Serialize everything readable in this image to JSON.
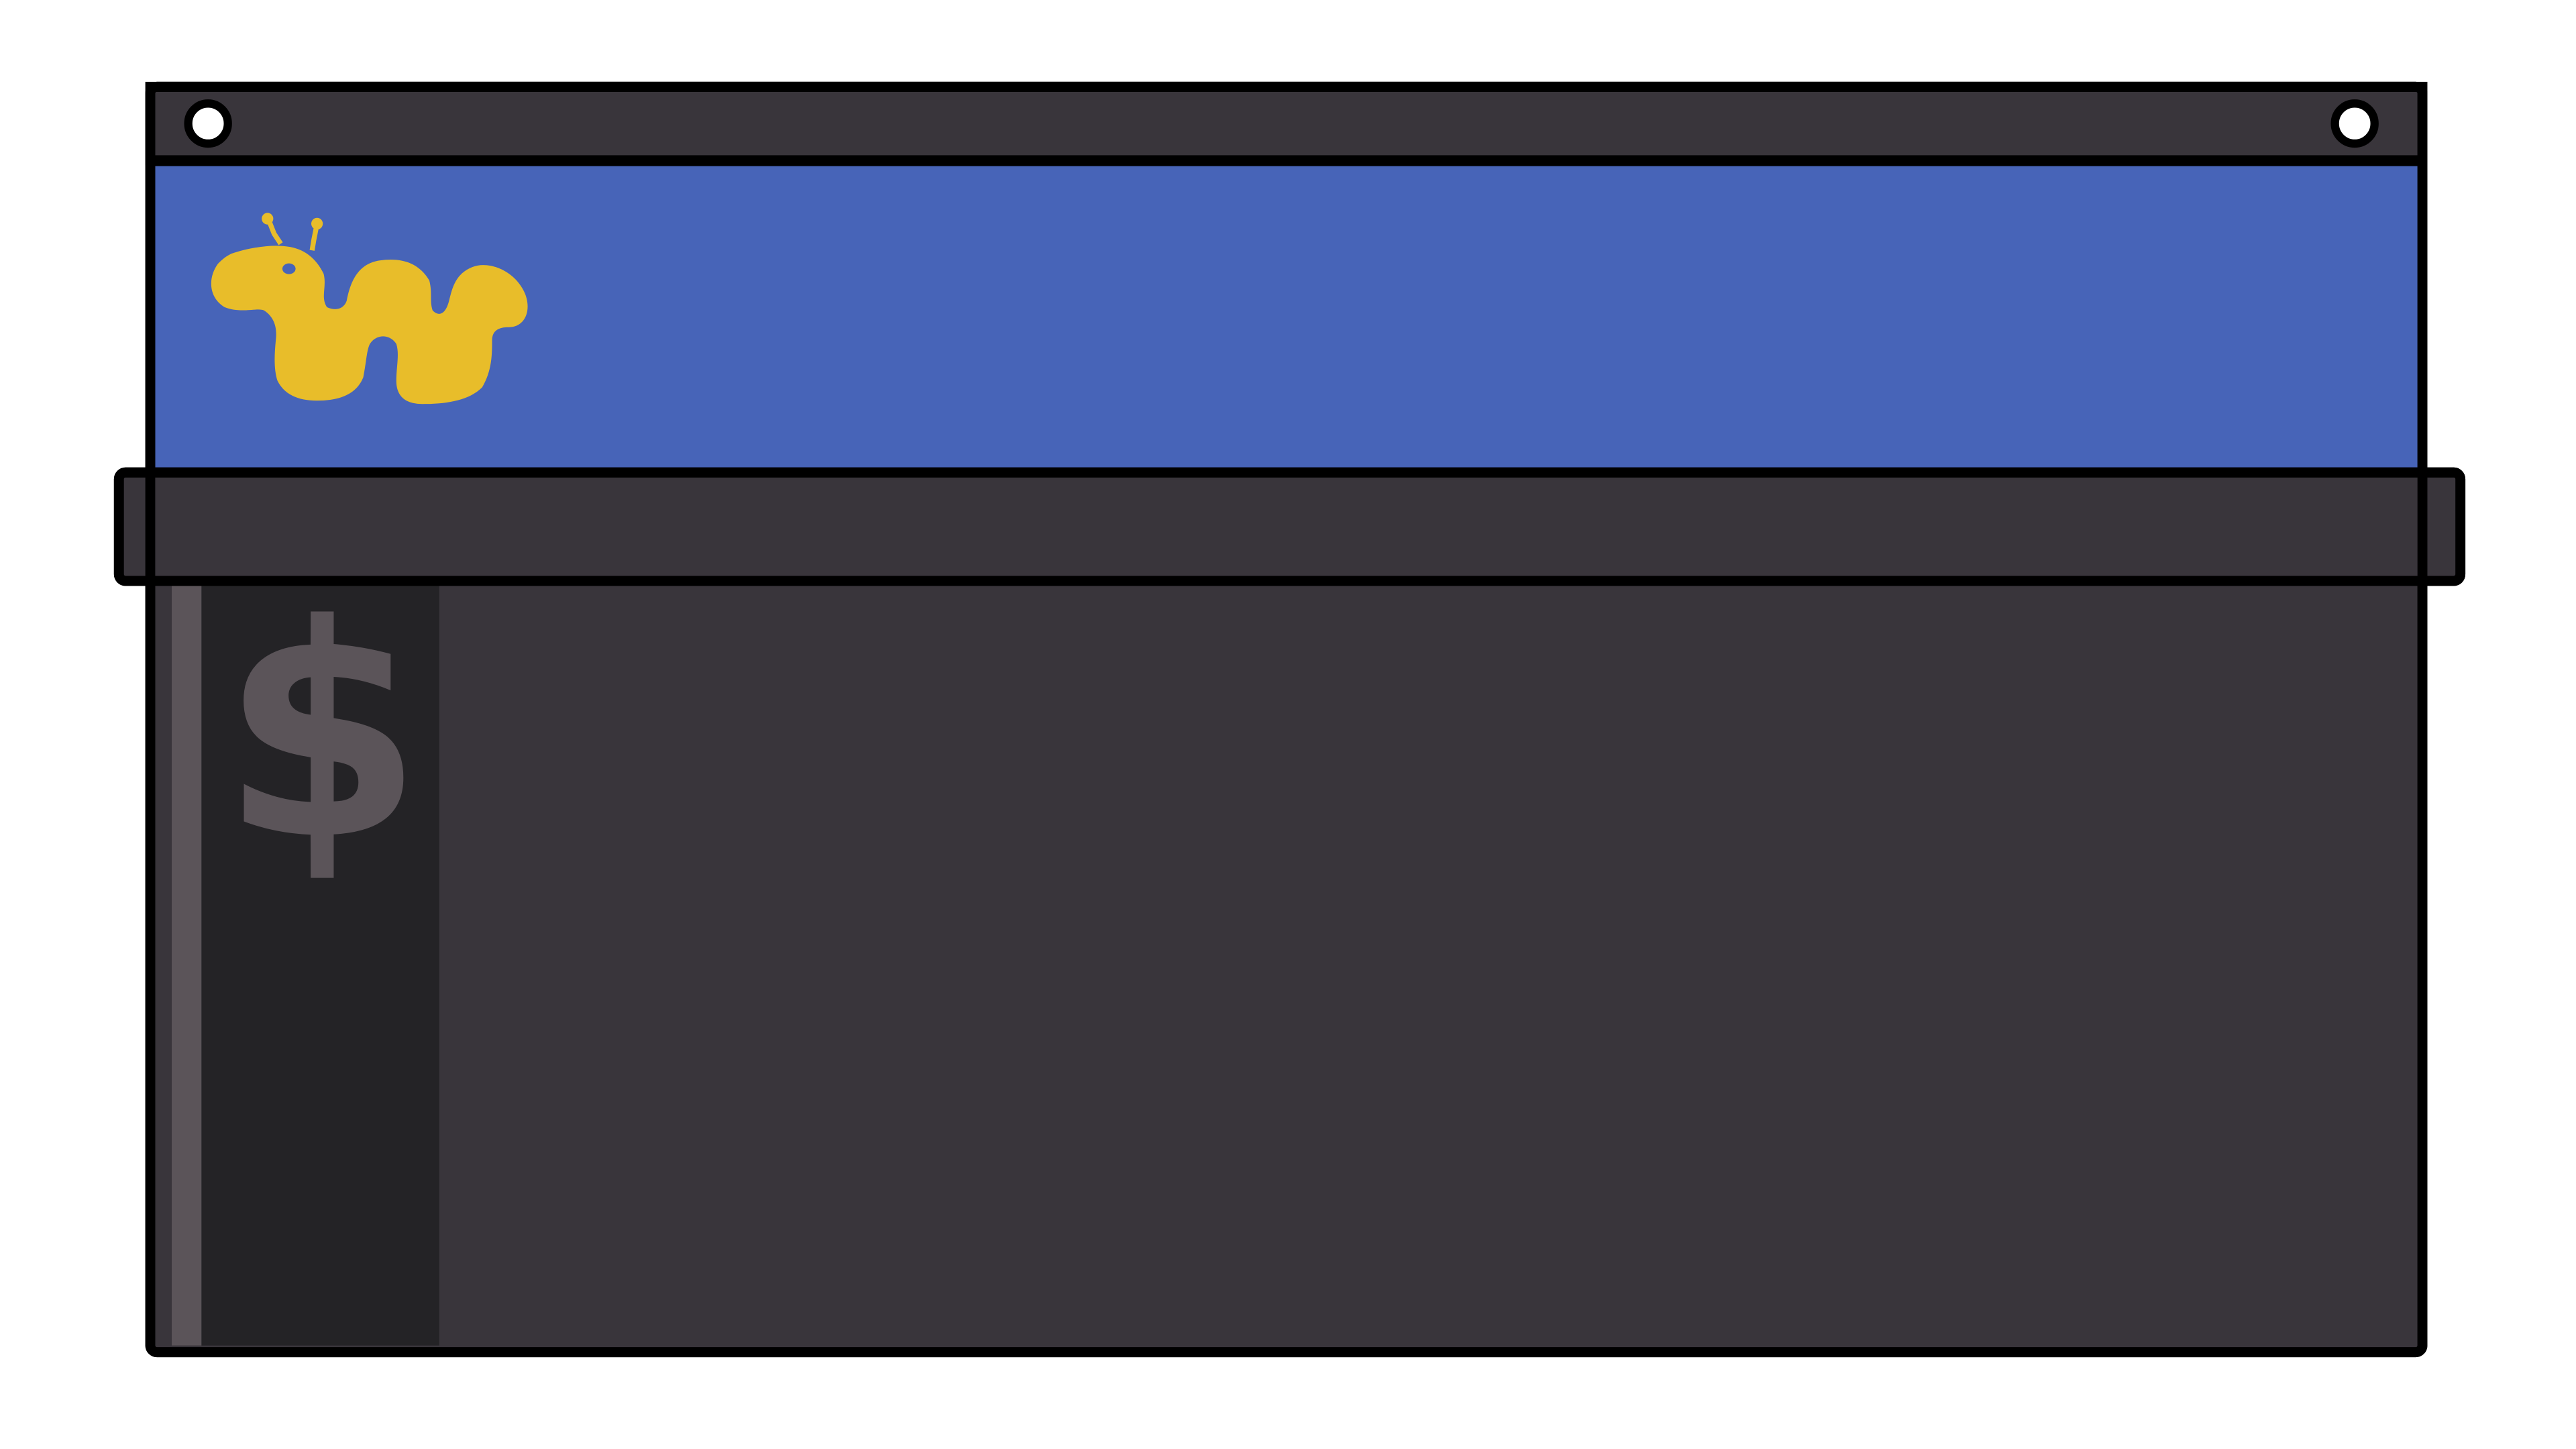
{
  "illustration": {
    "subject": "terminal-window-icon",
    "logo": "yellow-worm-logo",
    "prompt_symbol": "$"
  },
  "colors": {
    "outline": "#000000",
    "frame": "#39353b",
    "header_band": "#4764b8",
    "logo": "#e8bd2a",
    "gutter": "#242326",
    "gutter_stripe": "#5b5459",
    "prompt_glyph": "#5b5459",
    "screw_hole": "#ffffff",
    "background": "#ffffff"
  }
}
